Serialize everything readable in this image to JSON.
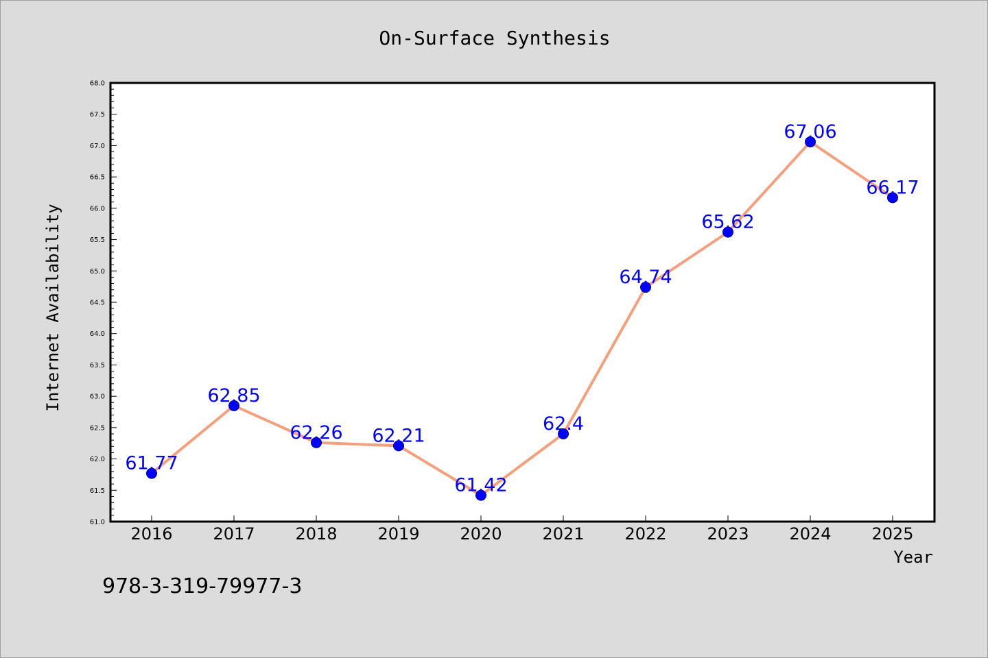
{
  "chart_data": {
    "type": "line",
    "title": "On-Surface Synthesis",
    "xlabel": "Year",
    "ylabel": "Internet Availability",
    "categories": [
      "2016",
      "2017",
      "2018",
      "2019",
      "2020",
      "2021",
      "2022",
      "2023",
      "2024",
      "2025"
    ],
    "series": [
      {
        "values": [
          61.77,
          62.85,
          62.26,
          62.21,
          61.42,
          62.4,
          64.74,
          65.62,
          67.06,
          66.17
        ],
        "labels": [
          "61.77",
          "62.85",
          "62.26",
          "62.21",
          "61.42",
          "62.4",
          "64.74",
          "65.62",
          "67.06",
          "66.17"
        ]
      }
    ],
    "ylim": [
      61.0,
      68.0
    ],
    "y_ticks": [
      "61.0",
      "61.5",
      "62.0",
      "62.5",
      "63.0",
      "63.5",
      "64.0",
      "64.5",
      "65.0",
      "65.5",
      "66.0",
      "66.5",
      "67.0",
      "67.5",
      "68.0"
    ],
    "grid": false,
    "legend": "none",
    "colors": {
      "line": "#f4a07c",
      "marker": "#0000ff",
      "marker_edge": "#000080",
      "data_label": "#0000ff",
      "axis": "#000000",
      "plot_background": "#ffffff",
      "figure_background": "#dcdcdc"
    },
    "footnote": "978-3-319-79977-3"
  }
}
